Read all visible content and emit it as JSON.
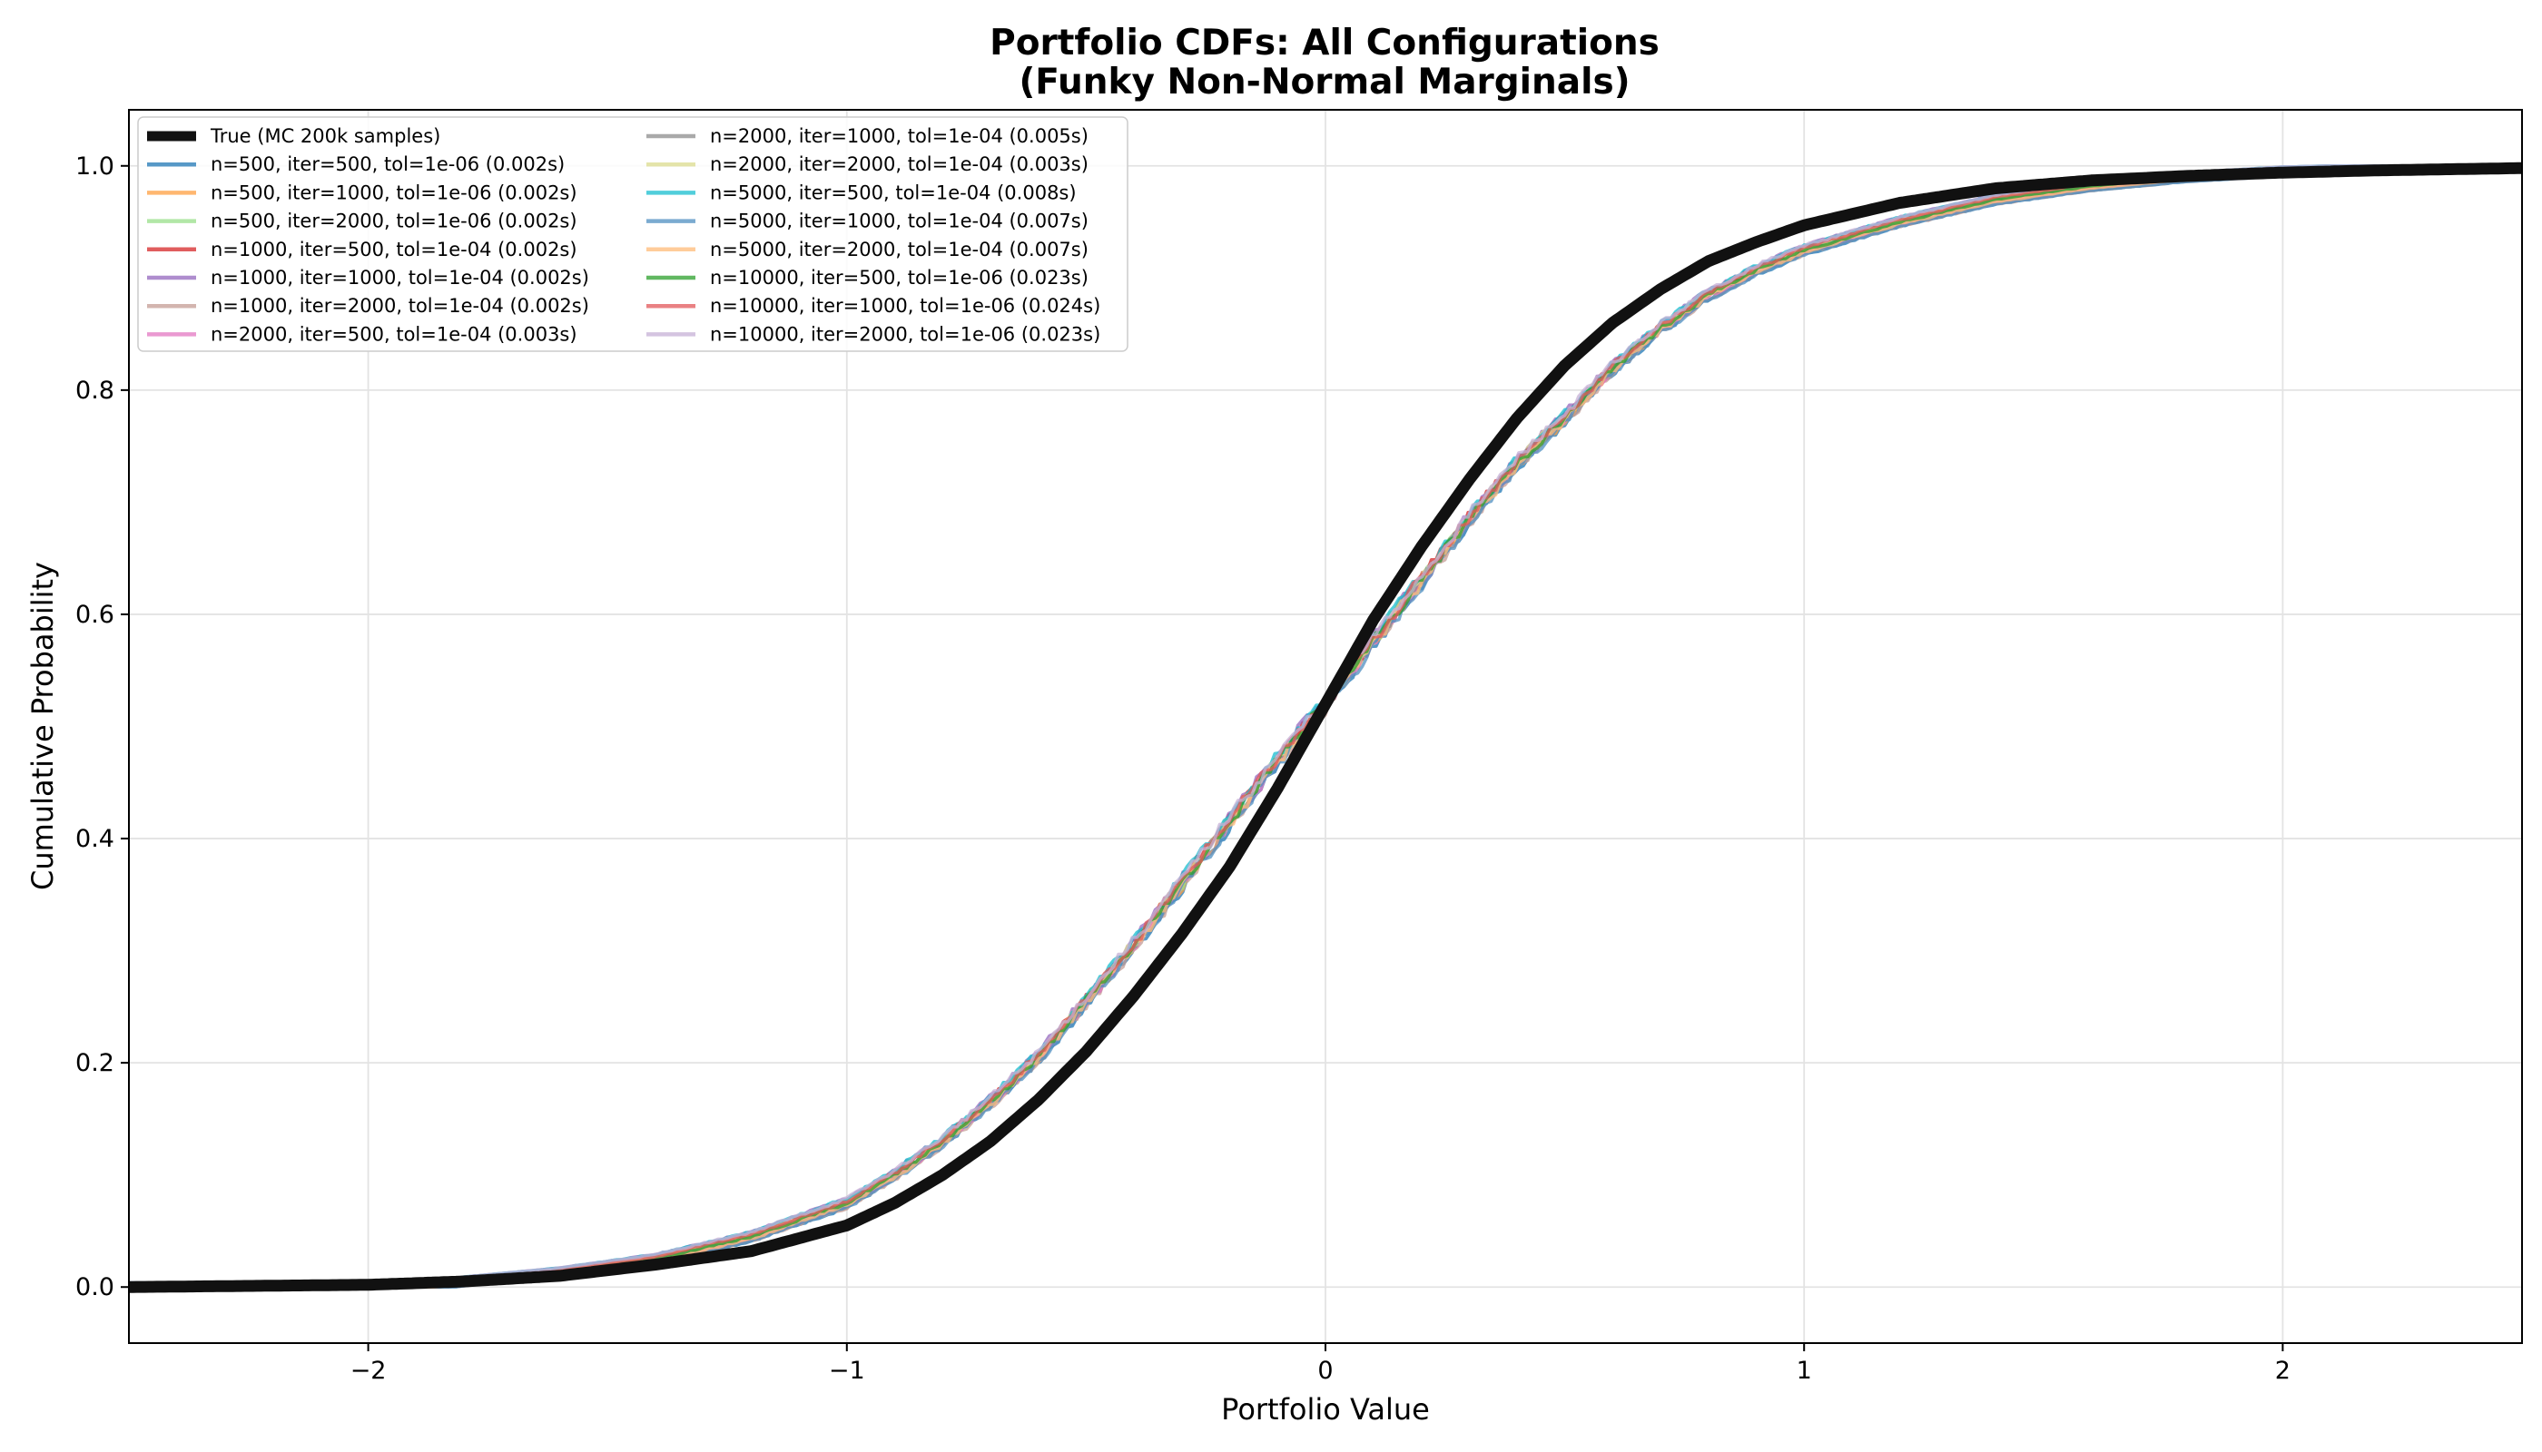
{
  "chart_data": {
    "type": "line",
    "title": "Portfolio CDFs: All Configurations",
    "subtitle": "(Funky Non-Normal Marginals)",
    "xlabel": "Portfolio Value",
    "ylabel": "Cumulative Probability",
    "xlim": [
      -2.5,
      2.5
    ],
    "ylim": [
      -0.05,
      1.05
    ],
    "xticks": [
      -2,
      -1,
      0,
      1,
      2
    ],
    "xtick_labels": [
      "−2",
      "−1",
      "0",
      "1",
      "2"
    ],
    "yticks": [
      0.0,
      0.2,
      0.4,
      0.6,
      0.8,
      1.0
    ],
    "ytick_labels": [
      "0.0",
      "0.2",
      "0.4",
      "0.6",
      "0.8",
      "1.0"
    ],
    "grid": true,
    "legend_position": "top-left",
    "legend_columns": 2,
    "series": [
      {
        "name": "True (MC 200k samples)",
        "color": "#111111",
        "kind": "true"
      },
      {
        "name": "n=500, iter=500, tol=1e-06 (0.002s)",
        "color": "#1f77b4"
      },
      {
        "name": "n=500, iter=1000, tol=1e-06 (0.002s)",
        "color": "#ff9f40"
      },
      {
        "name": "n=500, iter=2000, tol=1e-06 (0.002s)",
        "color": "#98df8a"
      },
      {
        "name": "n=1000, iter=500, tol=1e-04 (0.002s)",
        "color": "#d62728"
      },
      {
        "name": "n=1000, iter=1000, tol=1e-04 (0.002s)",
        "color": "#9467bd"
      },
      {
        "name": "n=1000, iter=2000, tol=1e-04 (0.002s)",
        "color": "#c49c94"
      },
      {
        "name": "n=2000, iter=500, tol=1e-04 (0.003s)",
        "color": "#e377c2"
      },
      {
        "name": "n=2000, iter=1000, tol=1e-04 (0.005s)",
        "color": "#8c8c8c"
      },
      {
        "name": "n=2000, iter=2000, tol=1e-04 (0.003s)",
        "color": "#dbdb8d"
      },
      {
        "name": "n=5000, iter=500, tol=1e-04 (0.008s)",
        "color": "#17becf"
      },
      {
        "name": "n=5000, iter=1000, tol=1e-04 (0.007s)",
        "color": "#4f8fc0"
      },
      {
        "name": "n=5000, iter=2000, tol=1e-04 (0.007s)",
        "color": "#ffbb78"
      },
      {
        "name": "n=10000, iter=500, tol=1e-06 (0.023s)",
        "color": "#2ca02c"
      },
      {
        "name": "n=10000, iter=1000, tol=1e-06 (0.024s)",
        "color": "#e15759"
      },
      {
        "name": "n=10000, iter=2000, tol=1e-06 (0.023s)",
        "color": "#c5b0d5"
      }
    ],
    "true_curve": {
      "x": [
        -2.5,
        -2.0,
        -1.8,
        -1.6,
        -1.4,
        -1.2,
        -1.0,
        -0.9,
        -0.8,
        -0.7,
        -0.6,
        -0.5,
        -0.4,
        -0.3,
        -0.2,
        -0.1,
        0.0,
        0.1,
        0.2,
        0.3,
        0.4,
        0.5,
        0.6,
        0.7,
        0.8,
        0.9,
        1.0,
        1.2,
        1.4,
        1.6,
        1.8,
        2.0,
        2.2,
        2.5
      ],
      "y": [
        0.0,
        0.002,
        0.005,
        0.01,
        0.02,
        0.032,
        0.055,
        0.075,
        0.1,
        0.13,
        0.167,
        0.21,
        0.26,
        0.315,
        0.375,
        0.445,
        0.52,
        0.595,
        0.66,
        0.72,
        0.775,
        0.822,
        0.86,
        0.89,
        0.915,
        0.932,
        0.947,
        0.967,
        0.98,
        0.987,
        0.991,
        0.994,
        0.996,
        0.998
      ]
    },
    "estimate_curve_shape": {
      "x": [
        -2.5,
        -1.9,
        -1.8,
        -1.6,
        -1.4,
        -1.2,
        -1.0,
        -0.9,
        -0.8,
        -0.7,
        -0.6,
        -0.5,
        -0.4,
        -0.3,
        -0.2,
        -0.1,
        0.0,
        0.1,
        0.2,
        0.3,
        0.4,
        0.5,
        0.6,
        0.7,
        0.8,
        0.9,
        1.0,
        1.2,
        1.4,
        1.6,
        1.8,
        2.0,
        2.5
      ],
      "y": [
        0.0,
        0.0,
        0.005,
        0.013,
        0.025,
        0.045,
        0.075,
        0.1,
        0.13,
        0.165,
        0.205,
        0.255,
        0.305,
        0.36,
        0.415,
        0.47,
        0.52,
        0.575,
        0.63,
        0.685,
        0.735,
        0.775,
        0.82,
        0.855,
        0.885,
        0.907,
        0.925,
        0.95,
        0.97,
        0.982,
        0.99,
        0.995,
        1.0
      ]
    }
  }
}
